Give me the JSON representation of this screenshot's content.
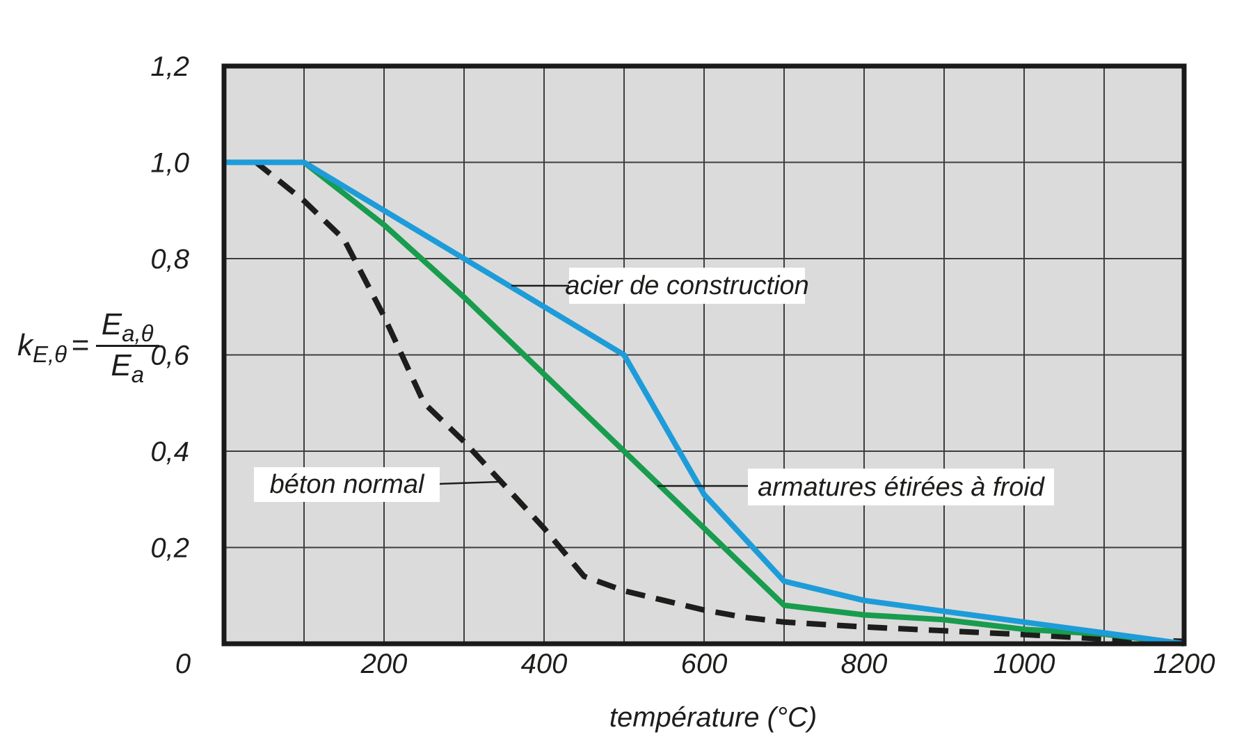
{
  "chart_data": {
    "type": "line",
    "title": "",
    "xlabel": "température (°C)",
    "ylabel": "k_E,θ = E_a,θ / E_a",
    "xlim": [
      0,
      1200
    ],
    "ylim": [
      0,
      1.2
    ],
    "grid": true,
    "x_grid_step": 100,
    "y_grid_step": 0.2,
    "x_ticks": [
      0,
      200,
      400,
      600,
      800,
      1000,
      1200
    ],
    "x_tick_labels": [
      "0",
      "200",
      "400",
      "600",
      "800",
      "1000",
      "1200"
    ],
    "y_ticks": [
      0.2,
      0.4,
      0.6,
      0.8,
      1.0,
      1.2
    ],
    "y_tick_labels": [
      "0,2",
      "0,4",
      "0,6",
      "0,8",
      "1,0",
      "1,2"
    ],
    "legend_position": "inline-labels-with-leader-lines",
    "series": [
      {
        "name": "acier de construction",
        "color": "#1e9cd9",
        "dash": false,
        "points": [
          [
            0,
            1.0
          ],
          [
            100,
            1.0
          ],
          [
            200,
            0.9
          ],
          [
            300,
            0.8
          ],
          [
            400,
            0.7
          ],
          [
            500,
            0.6
          ],
          [
            600,
            0.31
          ],
          [
            700,
            0.13
          ],
          [
            800,
            0.09
          ],
          [
            900,
            0.0675
          ],
          [
            1000,
            0.045
          ],
          [
            1100,
            0.0225
          ],
          [
            1200,
            0
          ]
        ]
      },
      {
        "name": "armatures étirées à froid",
        "color": "#189c4e",
        "dash": false,
        "points": [
          [
            0,
            1.0
          ],
          [
            100,
            1.0
          ],
          [
            200,
            0.87
          ],
          [
            300,
            0.72
          ],
          [
            400,
            0.56
          ],
          [
            500,
            0.4
          ],
          [
            600,
            0.24
          ],
          [
            700,
            0.08
          ],
          [
            800,
            0.06
          ],
          [
            900,
            0.05
          ],
          [
            1000,
            0.03
          ],
          [
            1100,
            0.02
          ],
          [
            1200,
            0
          ]
        ]
      },
      {
        "name": "béton normal",
        "color": "#1d1d1b",
        "dash": true,
        "points": [
          [
            0,
            1.0
          ],
          [
            40,
            1.0
          ],
          [
            100,
            0.92
          ],
          [
            150,
            0.84
          ],
          [
            200,
            0.68
          ],
          [
            250,
            0.5
          ],
          [
            300,
            0.42
          ],
          [
            350,
            0.33
          ],
          [
            400,
            0.24
          ],
          [
            450,
            0.14
          ],
          [
            500,
            0.11
          ],
          [
            550,
            0.09
          ],
          [
            600,
            0.07
          ],
          [
            650,
            0.055
          ],
          [
            700,
            0.045
          ],
          [
            800,
            0.035
          ],
          [
            900,
            0.027
          ],
          [
            1000,
            0.019
          ],
          [
            1100,
            0.01
          ],
          [
            1200,
            0.005
          ]
        ]
      }
    ]
  },
  "formula": {
    "k": "k",
    "k_sub": "E,θ",
    "equals": "=",
    "frac_num": "E",
    "frac_num_sub": "a,θ",
    "frac_den": "E",
    "frac_den_sub": "a"
  },
  "colors": {
    "plot_bg": "#dbdbdb",
    "grid": "#3d3d3d",
    "border": "#1a1a1a",
    "text": "#1d1d1b",
    "label_bg": "#ffffff",
    "steel_blue": "#1e9cd9",
    "rebar_green": "#189c4e",
    "concrete_black": "#1d1d1b"
  }
}
